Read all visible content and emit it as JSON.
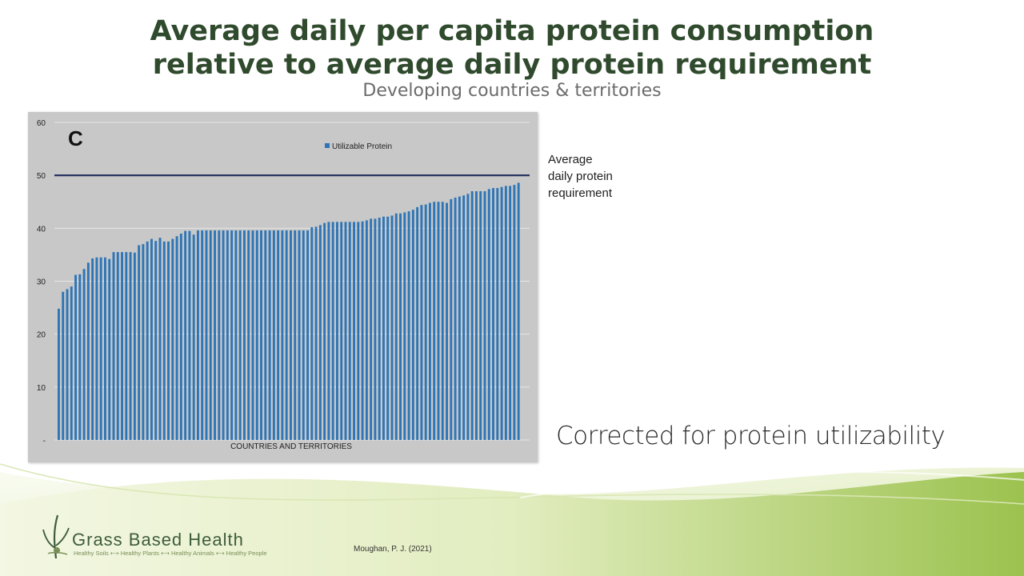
{
  "title_line1": "Average daily per capita protein consumption",
  "title_line2": "relative to average daily protein requirement",
  "subtitle": "Developing countries & territories",
  "side_label": [
    "Average",
    "daily protein",
    "requirement"
  ],
  "caption": "Corrected for protein utilizability",
  "citation": "Moughan, P. J. (2021)",
  "logo": {
    "name": "Grass Based Health",
    "tagline": "Healthy Soils ⟷ Healthy Plants ⟷ Healthy Animals ⟷ Healthy People"
  },
  "colors": {
    "title": "#2f4a2c",
    "bar": "#2e75b6",
    "requirement_line": "#1f2a5a",
    "plot_bg": "#c8c8c8",
    "footer_green": "#9cc24f"
  },
  "chart_data": {
    "type": "bar",
    "panel_label": "C",
    "xlabel": "COUNTRIES AND TERRITORIES",
    "ylabel": "",
    "ylim": [
      0,
      60
    ],
    "yticks": [
      0,
      10,
      20,
      30,
      40,
      50,
      60
    ],
    "ytick_labels": [
      "-",
      "10",
      "20",
      "30",
      "40",
      "50",
      "60"
    ],
    "grid": true,
    "legend_position": "top-center",
    "reference_line": {
      "value": 50,
      "label": "Average daily protein requirement"
    },
    "series": [
      {
        "name": "Utilizable Protein",
        "values": [
          24.8,
          28.0,
          28.5,
          29.0,
          31.2,
          31.3,
          32.3,
          33.5,
          34.3,
          34.5,
          34.5,
          34.5,
          34.2,
          35.5,
          35.5,
          35.5,
          35.5,
          35.5,
          35.4,
          36.8,
          37.0,
          37.5,
          38.0,
          37.6,
          38.2,
          37.5,
          37.5,
          38.0,
          38.5,
          39.0,
          39.5,
          39.5,
          38.8,
          39.6,
          39.6,
          39.6,
          39.6,
          39.6,
          39.6,
          39.6,
          39.6,
          39.6,
          39.6,
          39.6,
          39.6,
          39.6,
          39.6,
          39.6,
          39.6,
          39.6,
          39.6,
          39.6,
          39.6,
          39.6,
          39.6,
          39.6,
          39.6,
          39.6,
          39.6,
          39.6,
          40.2,
          40.3,
          40.6,
          41.0,
          41.2,
          41.2,
          41.2,
          41.2,
          41.2,
          41.2,
          41.2,
          41.2,
          41.3,
          41.5,
          41.8,
          41.8,
          42.0,
          42.2,
          42.2,
          42.4,
          42.8,
          42.8,
          43.0,
          43.2,
          43.5,
          44.0,
          44.4,
          44.5,
          44.8,
          45.0,
          45.0,
          45.0,
          44.8,
          45.5,
          45.8,
          46.0,
          46.2,
          46.5,
          47.0,
          47.0,
          47.0,
          47.0,
          47.4,
          47.6,
          47.6,
          47.8,
          48.0,
          48.0,
          48.2,
          48.6
        ]
      }
    ]
  }
}
